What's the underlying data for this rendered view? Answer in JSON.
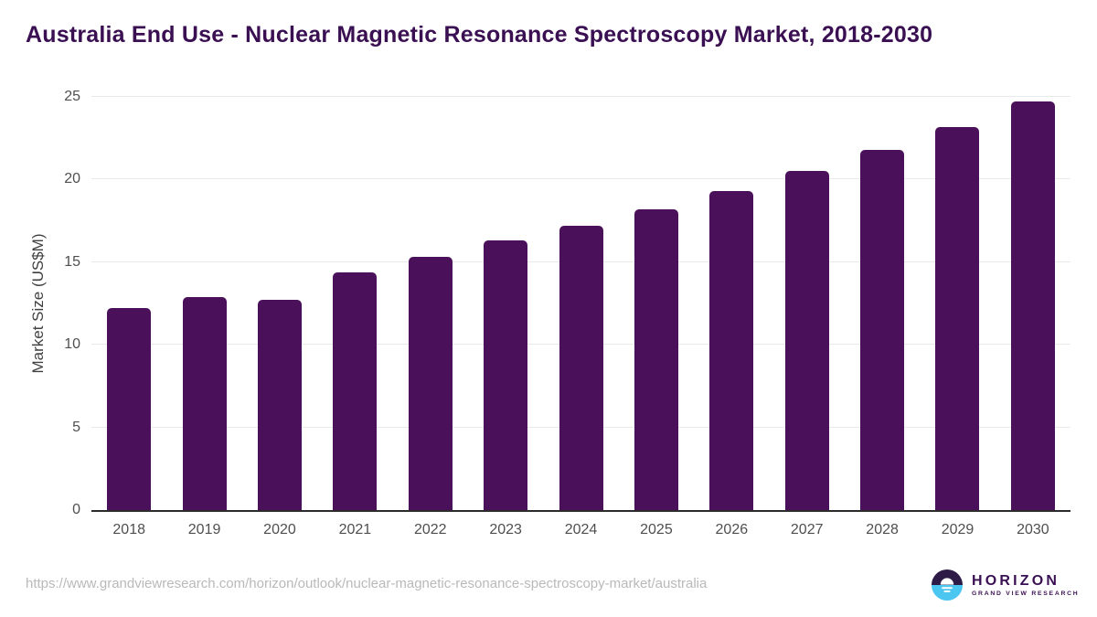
{
  "title": "Australia End Use - Nuclear Magnetic Resonance Spectroscopy Market, 2018-2030",
  "source_url": "https://www.grandviewresearch.com/horizon/outlook/nuclear-magnetic-resonance-spectroscopy-market/australia",
  "logo": {
    "name": "HORIZON",
    "subtitle": "GRAND VIEW RESEARCH"
  },
  "colors": {
    "bar": "#4A115A",
    "title": "#3A1052",
    "axis_text": "#4F4F4F",
    "grid": "#E9E9E9",
    "baseline": "#2B2B2B",
    "url_text": "#B9B9B9",
    "logo_dark": "#2E1A47",
    "logo_blue": "#4AC6F0"
  },
  "chart_data": {
    "type": "bar",
    "title": "Australia End Use - Nuclear Magnetic Resonance Spectroscopy Market, 2018-2030",
    "categories": [
      "2018",
      "2019",
      "2020",
      "2021",
      "2022",
      "2023",
      "2024",
      "2025",
      "2026",
      "2027",
      "2028",
      "2029",
      "2030"
    ],
    "values": [
      12.2,
      12.9,
      12.7,
      14.4,
      15.3,
      16.3,
      17.2,
      18.2,
      19.3,
      20.5,
      21.8,
      23.2,
      24.7
    ],
    "xlabel": "",
    "ylabel": "Market Size (US$M)",
    "ylim": [
      0,
      25
    ],
    "yticks": [
      0,
      5,
      10,
      15,
      20,
      25
    ],
    "grid": true,
    "legend": false,
    "bar_color": "#4A115A"
  }
}
